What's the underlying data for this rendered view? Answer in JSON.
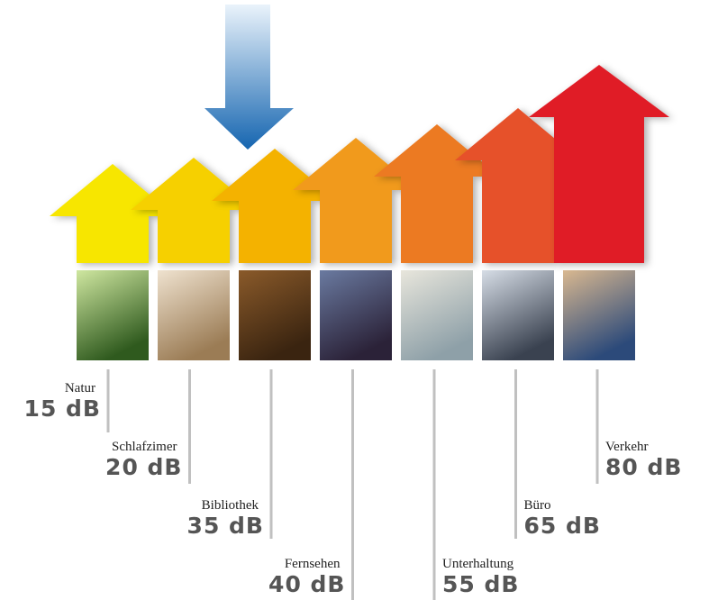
{
  "items": [
    {
      "label": "Natur",
      "level": "15 dB"
    },
    {
      "label": "Schlafzimer",
      "level": "20 dB"
    },
    {
      "label": "Bibliothek",
      "level": "35 dB"
    },
    {
      "label": "Fernsehen",
      "level": "40 dB"
    },
    {
      "label": "Unterhaltung",
      "level": "55 dB"
    },
    {
      "label": "Büro",
      "level": "65 dB"
    },
    {
      "label": "Verkehr",
      "level": "80 dB"
    }
  ]
}
